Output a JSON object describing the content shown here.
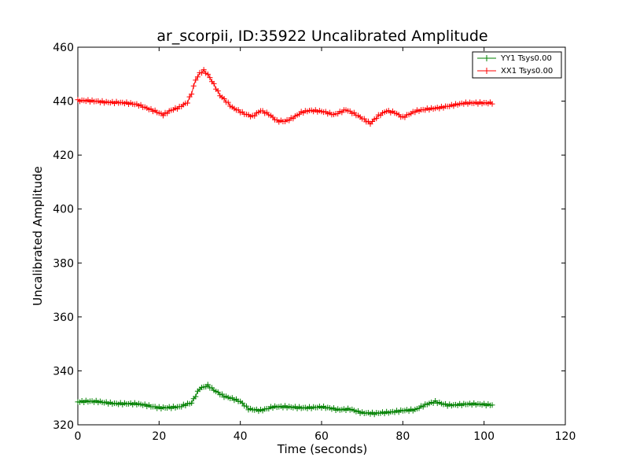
{
  "chart_data": {
    "type": "line",
    "title": "ar_scorpii, ID:35922 Uncalibrated Amplitude",
    "xlabel": "Time (seconds)",
    "ylabel": "Uncalibrated Amplitude",
    "xlim": [
      0,
      120
    ],
    "ylim": [
      320,
      460
    ],
    "xticks": [
      "0",
      "20",
      "40",
      "60",
      "80",
      "100",
      "120"
    ],
    "yticks": [
      "320",
      "340",
      "360",
      "380",
      "400",
      "420",
      "440",
      "460"
    ],
    "grid": false,
    "legend_position": "top-right",
    "marker": "+",
    "series": [
      {
        "name": "YY1 Tsys0.00",
        "color": "#008000",
        "x": [
          0,
          5,
          10,
          15,
          20,
          25,
          28,
          30,
          32,
          34,
          36,
          38,
          40,
          42,
          45,
          48,
          50,
          55,
          60,
          64,
          67,
          70,
          73,
          76,
          80,
          83,
          86,
          88,
          91,
          95,
          100,
          102
        ],
        "y": [
          328.5,
          328.5,
          328,
          327.5,
          326.5,
          326.5,
          328,
          333.5,
          334.8,
          332.5,
          330.5,
          329.5,
          328.5,
          326,
          325.5,
          326.5,
          326.5,
          326.5,
          326.5,
          325.5,
          326,
          324.5,
          324,
          324.5,
          325.5,
          325.5,
          327.5,
          328.5,
          327.5,
          327.5,
          327.5,
          327.5
        ]
      },
      {
        "name": "XX1 Tsys0.00",
        "color": "#ff0000",
        "x": [
          0,
          5,
          10,
          15,
          19,
          21,
          23,
          25,
          27,
          28,
          29,
          30,
          31,
          32,
          33,
          35,
          38,
          41,
          43,
          45,
          47,
          49,
          51,
          53,
          55,
          57,
          60,
          63,
          66,
          68,
          70,
          72,
          74,
          76,
          78,
          80,
          83,
          86,
          90,
          95,
          100,
          102
        ],
        "y": [
          440,
          440,
          439.5,
          438.5,
          436.5,
          435,
          436.5,
          437.5,
          439.5,
          443,
          448,
          450.5,
          451.5,
          450,
          447.5,
          442,
          437.5,
          435.5,
          434.5,
          436.5,
          435,
          432.5,
          432.5,
          434,
          436,
          436.5,
          436,
          435,
          437,
          435.5,
          433.5,
          431.5,
          434.5,
          436.5,
          436,
          434,
          436,
          437,
          438,
          439,
          439.5,
          439.5
        ]
      }
    ]
  }
}
